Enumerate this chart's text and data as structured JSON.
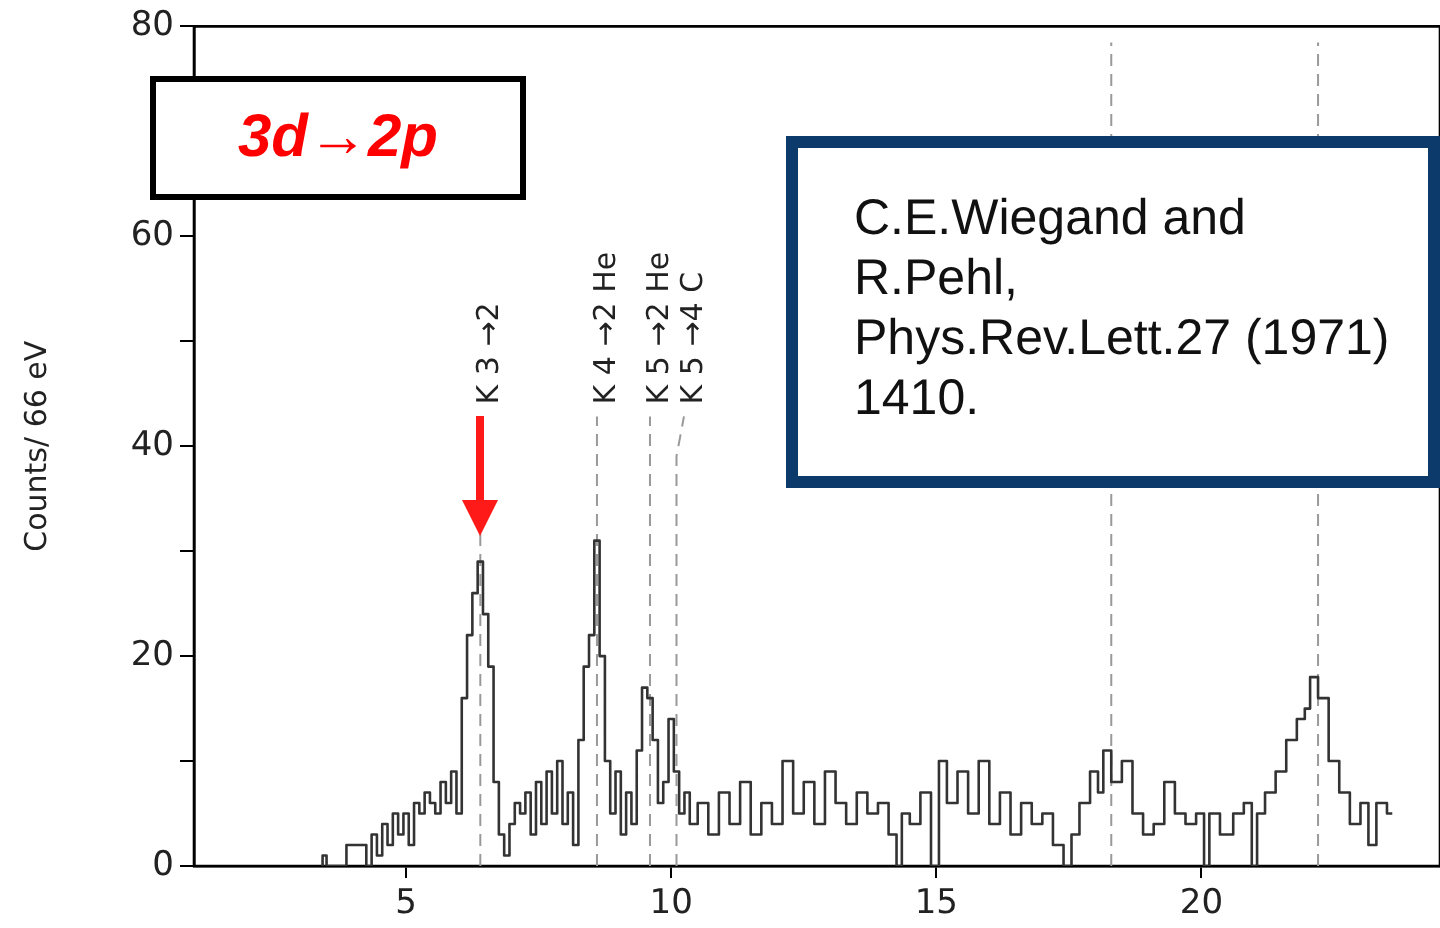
{
  "chart_data": {
    "type": "step",
    "ylabel": "Counts/ 66 eV",
    "xlim": [
      1,
      24.5
    ],
    "xticks": [
      5,
      10,
      15,
      20
    ],
    "ylim": [
      0,
      80
    ],
    "yticks": [
      0,
      {
        "value": 10,
        "label": null
      },
      20,
      {
        "value": 30,
        "label": null
      },
      40,
      {
        "value": 50,
        "label": null
      },
      60,
      {
        "value": 70,
        "label": null
      },
      80
    ],
    "grid": false,
    "legend": false,
    "marker": "none",
    "line_style": "solid",
    "series": [
      {
        "color": "#333333",
        "x": [
          3.4,
          3.45,
          3.55,
          4.2,
          4.3,
          4.4,
          4.5,
          4.6,
          4.7,
          4.8,
          4.9,
          5.0,
          5.1,
          5.2,
          5.3,
          5.4,
          5.5,
          5.6,
          5.7,
          5.8,
          5.9,
          6.0,
          6.1,
          6.2,
          6.3,
          6.4,
          6.5,
          6.6,
          6.7,
          6.8,
          6.9,
          7.0,
          7.1,
          7.2,
          7.3,
          7.4,
          7.5,
          7.6,
          7.7,
          7.8,
          7.9,
          8.0,
          8.1,
          8.2,
          8.3,
          8.4,
          8.5,
          8.6,
          8.7,
          8.8,
          8.9,
          9.0,
          9.1,
          9.2,
          9.3,
          9.4,
          9.5,
          9.6,
          9.7,
          9.8,
          9.9,
          10.0,
          10.1,
          10.2,
          10.3,
          10.4,
          10.6,
          10.8,
          11.0,
          11.2,
          11.4,
          11.6,
          11.8,
          12.0,
          12.2,
          12.4,
          12.6,
          12.8,
          13.0,
          13.2,
          13.4,
          13.6,
          13.8,
          14.0,
          14.2,
          14.3,
          14.4,
          14.6,
          14.8,
          15.0,
          15.1,
          15.3,
          15.5,
          15.7,
          15.9,
          16.1,
          16.3,
          16.5,
          16.7,
          16.9,
          17.1,
          17.3,
          17.5,
          17.6,
          17.8,
          18.0,
          18.1,
          18.2,
          18.4,
          18.6,
          18.8,
          19.0,
          19.2,
          19.4,
          19.6,
          19.8,
          20.0,
          20.1,
          20.2,
          20.5,
          20.7,
          20.9,
          21.0,
          21.1,
          21.3,
          21.5,
          21.7,
          21.9,
          22.0,
          22.1,
          22.3,
          22.5,
          22.7,
          22.9,
          23.1,
          23.2,
          23.4,
          23.6
        ],
        "values": [
          0,
          1,
          0,
          2,
          0,
          3,
          1,
          4,
          2,
          5,
          3,
          5,
          2,
          6,
          5,
          7,
          6,
          5,
          8,
          6,
          9,
          5,
          16,
          22,
          26,
          29,
          24,
          19,
          8,
          3,
          1,
          4,
          6,
          5,
          7,
          3,
          8,
          4,
          9,
          5,
          10,
          4,
          7,
          2,
          12,
          19,
          22,
          31,
          20,
          10,
          5,
          9,
          3,
          7,
          4,
          11,
          17,
          16,
          12,
          6,
          8,
          14,
          9,
          5,
          7,
          4,
          6,
          3,
          7,
          4,
          8,
          3,
          6,
          4,
          10,
          5,
          8,
          4,
          9,
          6,
          4,
          7,
          5,
          6,
          3,
          0,
          5,
          4,
          7,
          0,
          10,
          6,
          9,
          5,
          10,
          4,
          7,
          3,
          6,
          4,
          5,
          2,
          0,
          3,
          6,
          9,
          7,
          11,
          8,
          10,
          5,
          3,
          4,
          8,
          5,
          4,
          5,
          0,
          5,
          3,
          5,
          6,
          0,
          5,
          7,
          9,
          12,
          14,
          15,
          18,
          16,
          10,
          7,
          4,
          6,
          2,
          6,
          5
        ]
      }
    ],
    "ref_lines": [
      {
        "axis": "x",
        "value": 6.4,
        "label": "K 3 →2",
        "line_style": "dashed",
        "color": "#999999"
      },
      {
        "axis": "x",
        "value": 8.6,
        "label": "K 4 →2 He",
        "line_style": "dashed",
        "color": "#999999"
      },
      {
        "axis": "x",
        "value": 9.6,
        "label": "K 5 →2 He",
        "line_style": "dashed",
        "color": "#999999"
      },
      {
        "axis": "x",
        "value": 10.1,
        "label": "K 5 →4 C",
        "line_style": "dashed",
        "color": "#999999"
      },
      {
        "axis": "x",
        "value": 18.3,
        "line_style": "dashed",
        "color": "#999999"
      },
      {
        "axis": "x",
        "value": 22.2,
        "line_style": "dashed",
        "color": "#999999"
      }
    ],
    "annotations": [
      "3d→2p",
      "C.E.Wiegand and R.Pehl, Phys.Rev.Lett.27 (1971) 1410."
    ]
  }
}
